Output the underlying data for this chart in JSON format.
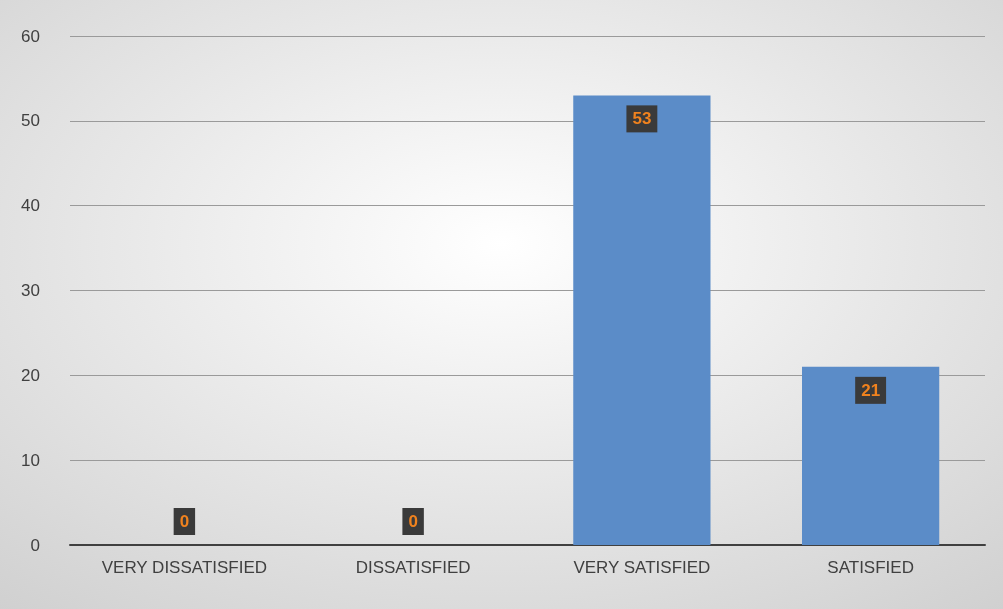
{
  "chart_data": {
    "type": "bar",
    "categories": [
      "VERY DISSATISFIED",
      "DISSATISFIED",
      "VERY SATISFIED",
      "SATISFIED"
    ],
    "values": [
      0,
      0,
      53,
      21
    ],
    "color": "#5b8cc8",
    "ylim": [
      0,
      60
    ],
    "yticks": [
      0,
      10,
      20,
      30,
      40,
      50,
      60
    ],
    "grid": "y",
    "data_labels": true
  }
}
